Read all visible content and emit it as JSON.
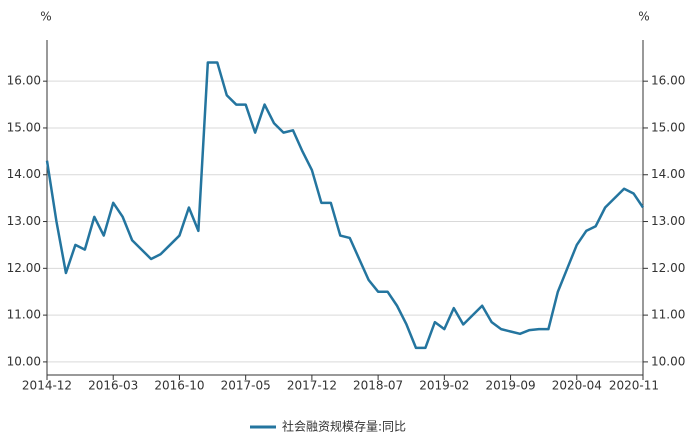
{
  "chart_data": {
    "type": "line",
    "y_label": "%",
    "y2_label": "%",
    "categories": [
      "2014-12",
      null,
      null,
      null,
      null,
      null,
      null,
      "2016-03",
      null,
      null,
      null,
      null,
      null,
      null,
      "2016-10",
      null,
      null,
      null,
      null,
      null,
      null,
      "2017-05",
      null,
      null,
      null,
      null,
      null,
      null,
      "2017-12",
      null,
      null,
      null,
      null,
      null,
      null,
      "2018-07",
      null,
      null,
      null,
      null,
      null,
      null,
      "2019-02",
      null,
      null,
      null,
      null,
      null,
      null,
      "2019-09",
      null,
      null,
      null,
      null,
      null,
      null,
      "2020-04",
      null,
      null,
      null,
      null,
      null,
      null,
      "2020-11"
    ],
    "series": [
      {
        "name": "社会融资规模存量:同比",
        "color": "#24759f",
        "values": [
          14.3,
          13.0,
          11.9,
          12.5,
          12.4,
          13.1,
          12.7,
          13.4,
          13.1,
          12.6,
          12.4,
          12.2,
          12.3,
          12.5,
          12.7,
          13.3,
          12.8,
          16.4,
          16.4,
          15.7,
          15.5,
          15.5,
          14.9,
          15.5,
          15.1,
          14.9,
          14.95,
          14.5,
          14.1,
          13.4,
          13.4,
          12.7,
          12.65,
          12.2,
          11.75,
          11.5,
          11.5,
          11.2,
          10.8,
          10.3,
          10.3,
          10.85,
          10.7,
          11.15,
          10.8,
          11.0,
          11.2,
          10.85,
          10.7,
          10.65,
          10.6,
          10.68,
          10.7,
          10.7,
          11.5,
          12.0,
          12.5,
          12.8,
          12.9,
          13.3,
          13.5,
          13.7,
          13.6,
          13.3
        ]
      }
    ],
    "ylim": [
      9.72,
      16.88
    ],
    "yticks": [
      {
        "value": 10,
        "label": "10.00"
      },
      {
        "value": 11,
        "label": "11.00"
      },
      {
        "value": 12,
        "label": "12.00"
      },
      {
        "value": 13,
        "label": "13.00"
      },
      {
        "value": 14,
        "label": "14.00"
      },
      {
        "value": 15,
        "label": "15.00"
      },
      {
        "value": 16,
        "label": "16.00"
      }
    ],
    "y2lim": [
      9.72,
      16.88
    ],
    "y2ticks": [
      {
        "value": 10,
        "label": "10.00"
      },
      {
        "value": 11,
        "label": "11.00"
      },
      {
        "value": 12,
        "label": "12.00"
      },
      {
        "value": 13,
        "label": "13.00"
      },
      {
        "value": 14,
        "label": "14.00"
      },
      {
        "value": 15,
        "label": "15.00"
      },
      {
        "value": 16,
        "label": "16.00"
      }
    ],
    "grid": true
  }
}
